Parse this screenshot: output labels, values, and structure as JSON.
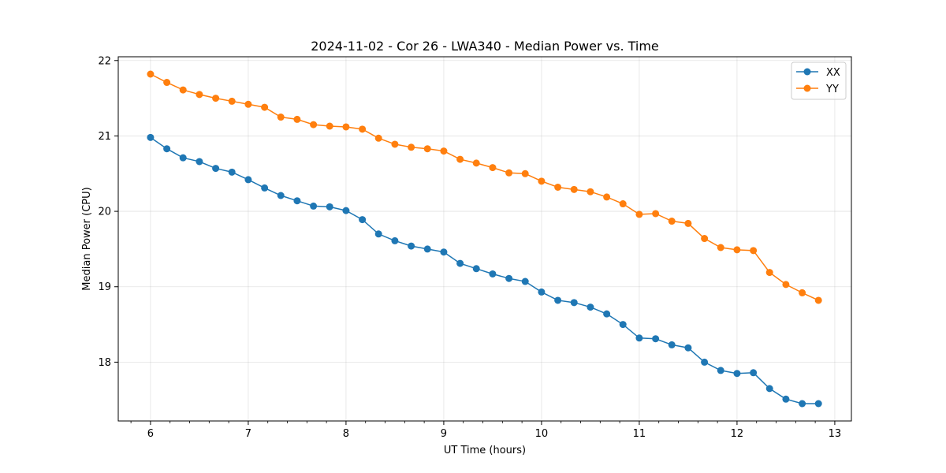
{
  "chart_data": {
    "type": "line",
    "title": "2024-11-02 - Cor 26 - LWA340 - Median Power vs. Time",
    "xlabel": "UT Time (hours)",
    "ylabel": "Median Power (CPU)",
    "xlim": [
      5.67,
      13.17
    ],
    "ylim": [
      17.22,
      22.05
    ],
    "xticks": [
      6,
      7,
      8,
      9,
      10,
      11,
      12,
      13
    ],
    "yticks": [
      18,
      19,
      20,
      21,
      22
    ],
    "xtick_labels": [
      "6",
      "7",
      "8",
      "9",
      "10",
      "11",
      "12",
      "13"
    ],
    "ytick_labels": [
      "18",
      "19",
      "20",
      "21",
      "22"
    ],
    "grid": true,
    "legend_position": "top-right",
    "x": [
      6.0,
      6.167,
      6.333,
      6.5,
      6.667,
      6.833,
      7.0,
      7.167,
      7.333,
      7.5,
      7.667,
      7.833,
      8.0,
      8.167,
      8.333,
      8.5,
      8.667,
      8.833,
      9.0,
      9.167,
      9.333,
      9.5,
      9.667,
      9.833,
      10.0,
      10.167,
      10.333,
      10.5,
      10.667,
      10.833,
      11.0,
      11.167,
      11.333,
      11.5,
      11.667,
      11.833,
      12.0,
      12.167,
      12.333,
      12.5,
      12.667,
      12.833
    ],
    "series": [
      {
        "name": "XX",
        "color": "#1f77b4",
        "values": [
          20.98,
          20.83,
          20.71,
          20.66,
          20.57,
          20.52,
          20.42,
          20.31,
          20.21,
          20.14,
          20.07,
          20.06,
          20.01,
          19.89,
          19.7,
          19.61,
          19.54,
          19.5,
          19.46,
          19.31,
          19.24,
          19.17,
          19.11,
          19.07,
          18.93,
          18.82,
          18.79,
          18.73,
          18.64,
          18.5,
          18.32,
          18.31,
          18.23,
          18.19,
          18.0,
          17.89,
          17.85,
          17.86,
          17.65,
          17.51,
          17.45,
          17.45
        ]
      },
      {
        "name": "YY",
        "color": "#ff7f0e",
        "values": [
          21.82,
          21.71,
          21.61,
          21.55,
          21.5,
          21.46,
          21.42,
          21.38,
          21.25,
          21.22,
          21.15,
          21.13,
          21.12,
          21.09,
          20.97,
          20.89,
          20.85,
          20.83,
          20.8,
          20.69,
          20.64,
          20.58,
          20.51,
          20.5,
          20.4,
          20.32,
          20.29,
          20.26,
          20.19,
          20.1,
          19.96,
          19.97,
          19.87,
          19.84,
          19.64,
          19.52,
          19.49,
          19.48,
          19.19,
          19.03,
          18.92,
          18.82
        ]
      }
    ]
  }
}
